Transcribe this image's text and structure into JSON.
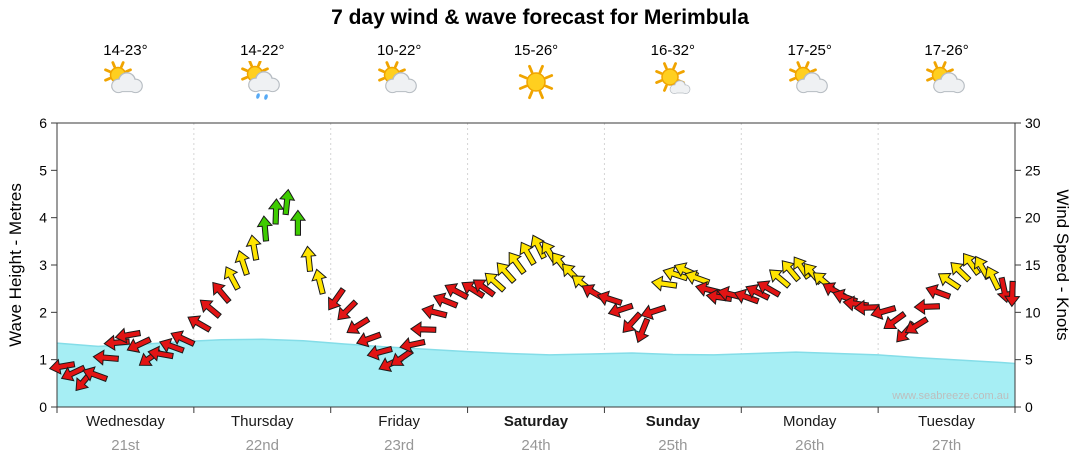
{
  "header": {
    "title": "7 day wind & wave forecast for Merimbula"
  },
  "axes": {
    "left_label": "Wave Height - Metres",
    "right_label": "Wind Speed - Knots",
    "left_ticks": [
      0,
      1,
      2,
      3,
      4,
      5,
      6
    ],
    "right_ticks": [
      0,
      5,
      10,
      15,
      20,
      25,
      30
    ]
  },
  "watermark": "www.seabreeze.com.au",
  "days": [
    {
      "name": "Wednesday",
      "date": "21st",
      "temp": "14-23°",
      "icon": "partly-cloudy",
      "weekend": false
    },
    {
      "name": "Thursday",
      "date": "22nd",
      "temp": "14-22°",
      "icon": "partly-cloudy-rain",
      "weekend": false
    },
    {
      "name": "Friday",
      "date": "23rd",
      "temp": "10-22°",
      "icon": "partly-cloudy",
      "weekend": false
    },
    {
      "name": "Saturday",
      "date": "24th",
      "temp": "15-26°",
      "icon": "sunny",
      "weekend": true
    },
    {
      "name": "Sunday",
      "date": "25th",
      "temp": "16-32°",
      "icon": "mostly-sunny",
      "weekend": true
    },
    {
      "name": "Monday",
      "date": "26th",
      "temp": "17-25°",
      "icon": "partly-cloudy",
      "weekend": false
    },
    {
      "name": "Tuesday",
      "date": "27th",
      "temp": "17-26°",
      "icon": "partly-cloudy",
      "weekend": false
    }
  ],
  "chart_data": [
    {
      "type": "area",
      "name": "Wave Height",
      "ylabel": "Wave Height - Metres",
      "ylim": [
        0,
        6
      ],
      "x_unit": "days from start of Wednesday 21st (0-7)",
      "fill_color": "#a6eef4",
      "edge_color": "#84dde8",
      "points": [
        [
          0,
          1.35
        ],
        [
          0.3,
          1.28
        ],
        [
          0.6,
          1.32
        ],
        [
          0.9,
          1.38
        ],
        [
          1.2,
          1.42
        ],
        [
          1.5,
          1.43
        ],
        [
          1.8,
          1.4
        ],
        [
          2.1,
          1.33
        ],
        [
          2.4,
          1.27
        ],
        [
          2.7,
          1.22
        ],
        [
          3.0,
          1.17
        ],
        [
          3.3,
          1.13
        ],
        [
          3.6,
          1.1
        ],
        [
          3.9,
          1.12
        ],
        [
          4.2,
          1.14
        ],
        [
          4.5,
          1.11
        ],
        [
          4.8,
          1.1
        ],
        [
          5.1,
          1.13
        ],
        [
          5.4,
          1.16
        ],
        [
          5.7,
          1.13
        ],
        [
          6.0,
          1.1
        ],
        [
          6.3,
          1.04
        ],
        [
          6.6,
          0.99
        ],
        [
          6.9,
          0.94
        ],
        [
          7.0,
          0.92
        ]
      ]
    },
    {
      "type": "scatter",
      "name": "Wind Speed & Direction",
      "marker": "arrow",
      "ylabel": "Wind Speed - Knots",
      "ylim": [
        0,
        30
      ],
      "x_unit": "days from start of Wednesday 21st (0-7)",
      "direction_convention": "degrees CCW from east = direction arrow points",
      "color_scale": [
        {
          "max_knots": 12.6,
          "color": "#e21414"
        },
        {
          "max_knots": 17.7,
          "color": "#ffe400"
        },
        {
          "max_knots": 30,
          "color": "#3ecc00"
        }
      ],
      "points": [
        [
          0.04,
          4.3,
          190
        ],
        [
          0.12,
          3.6,
          205
        ],
        [
          0.2,
          2.8,
          230
        ],
        [
          0.28,
          3.4,
          160
        ],
        [
          0.36,
          5.2,
          175
        ],
        [
          0.44,
          6.8,
          185
        ],
        [
          0.52,
          7.6,
          190
        ],
        [
          0.6,
          6.6,
          205
        ],
        [
          0.68,
          5.2,
          215
        ],
        [
          0.76,
          5.6,
          170
        ],
        [
          0.84,
          6.4,
          160
        ],
        [
          0.92,
          7.2,
          155
        ],
        [
          1.04,
          8.8,
          150
        ],
        [
          1.12,
          10.4,
          140
        ],
        [
          1.2,
          12.1,
          130
        ],
        [
          1.28,
          13.6,
          118
        ],
        [
          1.36,
          15.2,
          108
        ],
        [
          1.44,
          16.8,
          100
        ],
        [
          1.52,
          18.8,
          95
        ],
        [
          1.6,
          20.6,
          88
        ],
        [
          1.68,
          21.6,
          84
        ],
        [
          1.76,
          19.4,
          90
        ],
        [
          1.84,
          15.6,
          96
        ],
        [
          1.92,
          13.2,
          104
        ],
        [
          2.04,
          11.4,
          235
        ],
        [
          2.12,
          10.2,
          225
        ],
        [
          2.2,
          8.6,
          212
        ],
        [
          2.28,
          7.2,
          200
        ],
        [
          2.36,
          5.8,
          195
        ],
        [
          2.44,
          4.6,
          205
        ],
        [
          2.52,
          5.2,
          215
        ],
        [
          2.6,
          6.6,
          192
        ],
        [
          2.68,
          8.2,
          178
        ],
        [
          2.76,
          10.0,
          166
        ],
        [
          2.84,
          11.2,
          158
        ],
        [
          2.92,
          12.2,
          152
        ],
        [
          3.04,
          12.4,
          148
        ],
        [
          3.12,
          12.6,
          144
        ],
        [
          3.2,
          13.2,
          138
        ],
        [
          3.28,
          14.2,
          132
        ],
        [
          3.36,
          15.2,
          126
        ],
        [
          3.44,
          16.2,
          120
        ],
        [
          3.52,
          16.9,
          116
        ],
        [
          3.6,
          16.3,
          122
        ],
        [
          3.68,
          15.2,
          128
        ],
        [
          3.76,
          14.1,
          134
        ],
        [
          3.84,
          13.0,
          142
        ],
        [
          3.92,
          12.1,
          150
        ],
        [
          4.04,
          11.4,
          162
        ],
        [
          4.12,
          10.3,
          198
        ],
        [
          4.2,
          8.9,
          228
        ],
        [
          4.28,
          8.1,
          248
        ],
        [
          4.36,
          10.1,
          198
        ],
        [
          4.44,
          13.0,
          172
        ],
        [
          4.52,
          14.0,
          162
        ],
        [
          4.6,
          14.4,
          156
        ],
        [
          4.68,
          13.6,
          160
        ],
        [
          4.76,
          12.4,
          166
        ],
        [
          4.84,
          11.6,
          172
        ],
        [
          4.92,
          11.9,
          166
        ],
        [
          5.04,
          11.6,
          160
        ],
        [
          5.12,
          12.1,
          154
        ],
        [
          5.2,
          12.5,
          150
        ],
        [
          5.28,
          13.6,
          140
        ],
        [
          5.36,
          14.4,
          130
        ],
        [
          5.44,
          14.7,
          124
        ],
        [
          5.52,
          14.1,
          130
        ],
        [
          5.6,
          13.3,
          140
        ],
        [
          5.68,
          12.3,
          150
        ],
        [
          5.76,
          11.6,
          160
        ],
        [
          5.84,
          10.9,
          172
        ],
        [
          5.92,
          10.5,
          182
        ],
        [
          6.04,
          10.1,
          196
        ],
        [
          6.12,
          9.1,
          216
        ],
        [
          6.2,
          7.9,
          228
        ],
        [
          6.28,
          8.6,
          212
        ],
        [
          6.36,
          10.6,
          182
        ],
        [
          6.44,
          12.1,
          160
        ],
        [
          6.52,
          13.3,
          146
        ],
        [
          6.6,
          14.3,
          136
        ],
        [
          6.68,
          15.1,
          126
        ],
        [
          6.76,
          14.7,
          120
        ],
        [
          6.84,
          13.6,
          116
        ],
        [
          6.92,
          12.4,
          282
        ],
        [
          6.98,
          12.0,
          268
        ]
      ]
    }
  ]
}
